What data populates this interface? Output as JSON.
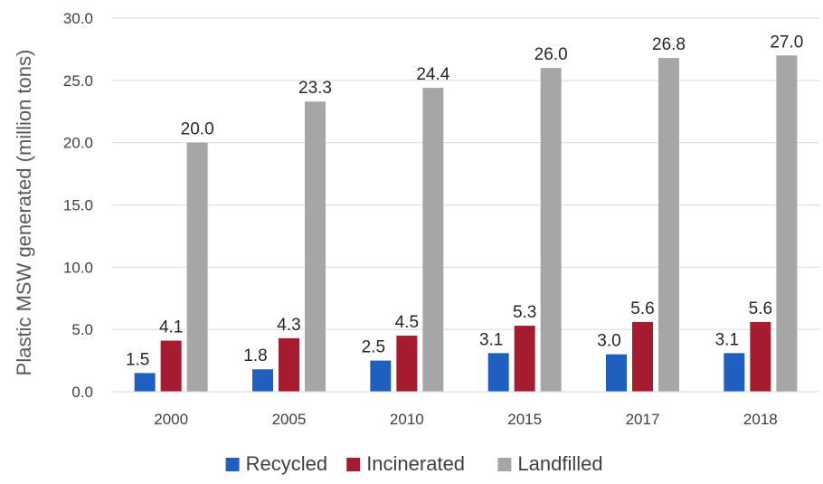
{
  "chart_data": {
    "type": "bar",
    "title": "",
    "xlabel": "",
    "ylabel": "Plastic MSW generated (million tons)",
    "categories": [
      "2000",
      "2005",
      "2010",
      "2015",
      "2017",
      "2018"
    ],
    "series": [
      {
        "name": "Recycled",
        "color": "#1f5fbf",
        "values": [
          1.5,
          1.8,
          2.5,
          3.1,
          3.0,
          3.1
        ],
        "labels": [
          "1.5",
          "1.8",
          "2.5",
          "3.1",
          "3.0",
          "3.1"
        ]
      },
      {
        "name": "Incinerated",
        "color": "#a51c30",
        "values": [
          4.1,
          4.3,
          4.5,
          5.3,
          5.6,
          5.6
        ],
        "labels": [
          "4.1",
          "4.3",
          "4.5",
          "5.3",
          "5.6",
          "5.6"
        ]
      },
      {
        "name": "Landfilled",
        "color": "#a6a6a6",
        "values": [
          20.0,
          23.3,
          24.4,
          26.0,
          26.8,
          27.0
        ],
        "labels": [
          "20.0",
          "23.3",
          "24.4",
          "26.0",
          "26.8",
          "27.0"
        ]
      }
    ],
    "ylim": [
      0,
      30
    ],
    "yticks": [
      "0.0",
      "5.0",
      "10.0",
      "15.0",
      "20.0",
      "25.0",
      "30.0"
    ],
    "grid": true,
    "legend_position": "bottom"
  }
}
